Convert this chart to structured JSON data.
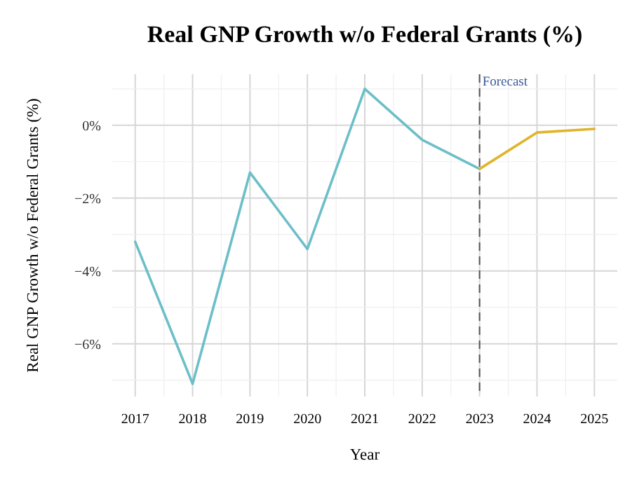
{
  "chart_data": {
    "type": "line",
    "title": "Real GNP Growth w/o Federal Grants (%)",
    "xlabel": "Year",
    "ylabel": "Real GNP Growth w/o Federal Grants (%)",
    "series": [
      {
        "color": "#6cbfc8",
        "x": [
          2017,
          2018,
          2019,
          2020,
          2021,
          2022,
          2023
        ],
        "values": [
          -3.2,
          -7.1,
          -1.3,
          -3.4,
          1.0,
          -0.4,
          -1.2
        ]
      },
      {
        "color": "#e0b42c",
        "x": [
          2023,
          2024,
          2025
        ],
        "values": [
          -1.2,
          -0.2,
          -0.1
        ]
      }
    ],
    "xlim": [
      2016.6,
      2025.4
    ],
    "ylim": [
      -7.45,
      1.4
    ],
    "xticks": [
      2017,
      {
        "value": 2017.5,
        "label": null
      },
      2018,
      {
        "value": 2018.5,
        "label": null
      },
      2019,
      {
        "value": 2019.5,
        "label": null
      },
      2020,
      {
        "value": 2020.5,
        "label": null
      },
      2021,
      {
        "value": 2021.5,
        "label": null
      },
      2022,
      {
        "value": 2022.5,
        "label": null
      },
      2023,
      {
        "value": 2023.5,
        "label": null
      },
      2024,
      {
        "value": 2024.5,
        "label": null
      },
      2025
    ],
    "yticks": [
      {
        "value": -7,
        "label": null
      },
      {
        "value": -6,
        "label": "−6%"
      },
      {
        "value": -5,
        "label": null
      },
      {
        "value": -4,
        "label": "−4%"
      },
      {
        "value": -3,
        "label": null
      },
      {
        "value": -2,
        "label": "−2%"
      },
      {
        "value": -1,
        "label": null
      },
      {
        "value": 0,
        "label": "0%"
      },
      {
        "value": 1,
        "label": null
      }
    ],
    "grid": true,
    "marker": "none",
    "line_style": "solid",
    "ref_lines": [
      {
        "axis": "x",
        "value": 2023,
        "label": "Forecast",
        "color": "#555555",
        "line_style": "dashed"
      }
    ]
  }
}
